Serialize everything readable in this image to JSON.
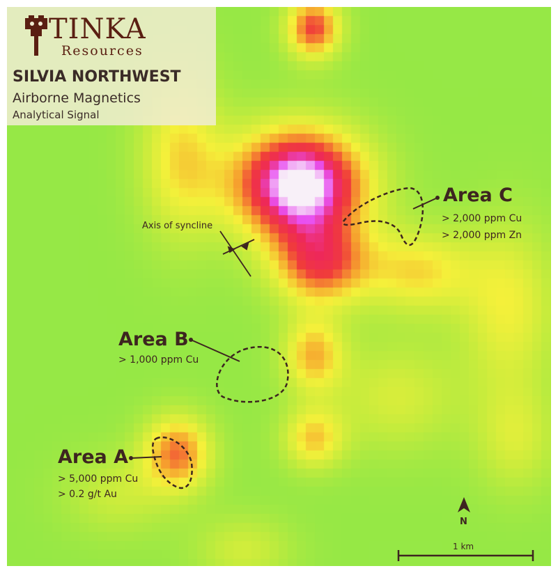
{
  "header": {
    "brand_name": "TINKA",
    "brand_sub": "Resources",
    "title": "SILVIA NORTHWEST",
    "subtitle": "Airborne Magnetics",
    "subtitle2": "Analytical Signal"
  },
  "annotations": {
    "syncline_label": "Axis of syncline",
    "area_c": {
      "title": "Area C",
      "lines": [
        "> 2,000 ppm Cu",
        "> 2,000 ppm Zn"
      ]
    },
    "area_b": {
      "title": "Area B",
      "lines": [
        "> 1,000 ppm Cu"
      ]
    },
    "area_a": {
      "title": "Area A",
      "lines": [
        "> 5,000 ppm Cu",
        "> 0.2 g/t Au"
      ]
    }
  },
  "north_arrow_label": "N",
  "scale_bar_label": "1 km",
  "colors": {
    "low": "#7ee64a",
    "mid": "#f4f03a",
    "orange": "#f59a2e",
    "red": "#f02f3a",
    "magenta": "#e84ef0",
    "peak": "#f5f0f5",
    "label": "#3d2520",
    "brand": "#5a1f12"
  }
}
